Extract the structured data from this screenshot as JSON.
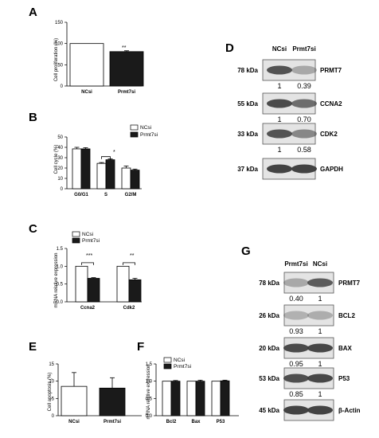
{
  "colors": {
    "white_bar": "#ffffff",
    "black_bar": "#1a1a1a",
    "axis": "#000000",
    "blot_bg": "#e4e4e4",
    "band": "#3a3a3a"
  },
  "panels": {
    "A": {
      "letter": "A",
      "ylabel": "Cell proliferation (%)",
      "sig": "**"
    },
    "B": {
      "letter": "B",
      "ylabel": "Cell cycle (%)",
      "sig": "*",
      "legend": [
        "NCsi",
        "Prmt7si"
      ]
    },
    "C": {
      "letter": "C",
      "ylabel": "mRNA relative expression",
      "sigs": [
        "***",
        "**"
      ],
      "legend": [
        "NCsi",
        "Prmt7si"
      ]
    },
    "D": {
      "letter": "D"
    },
    "E": {
      "letter": "E",
      "ylabel": "Cell apoptosis (%)"
    },
    "F": {
      "letter": "F",
      "ylabel": "mRNA relative expression",
      "legend": [
        "NCsi",
        "Prmt7si"
      ]
    },
    "G": {
      "letter": "G"
    }
  },
  "chart_data": [
    {
      "panel": "A",
      "type": "bar",
      "categories": [
        "NCsi",
        "Prmt7si"
      ],
      "values": [
        100,
        81
      ],
      "errors": [
        0,
        2
      ],
      "ylabel": "Cell proliferation (%)",
      "ylim": [
        0,
        150
      ],
      "yticks": [
        "0",
        "50",
        "100",
        "150"
      ]
    },
    {
      "panel": "B",
      "type": "bar",
      "categories": [
        "G0/G1",
        "S",
        "G2/M"
      ],
      "series": [
        {
          "name": "NCsi",
          "values": [
            38.5,
            24.5,
            20
          ],
          "errors": [
            1.5,
            0.8,
            2
          ]
        },
        {
          "name": "Prmt7si",
          "values": [
            38.5,
            28,
            18
          ],
          "errors": [
            1.2,
            0.8,
            1
          ]
        }
      ],
      "ylabel": "Cell cycle (%)",
      "ylim": [
        0,
        50
      ],
      "yticks": [
        "0",
        "10",
        "20",
        "30",
        "40",
        "50"
      ]
    },
    {
      "panel": "C",
      "type": "bar",
      "categories": [
        "Ccna2",
        "Cdk2"
      ],
      "series": [
        {
          "name": "NCsi",
          "values": [
            1.0,
            1.0
          ],
          "errors": [
            0,
            0
          ]
        },
        {
          "name": "Prmt7si",
          "values": [
            0.66,
            0.62
          ],
          "errors": [
            0.02,
            0.04
          ]
        }
      ],
      "ylabel": "mRNA relative expression",
      "ylim": [
        0,
        1.5
      ],
      "yticks": [
        "0.0",
        "0.5",
        "1.0",
        "1.5"
      ]
    },
    {
      "panel": "E",
      "type": "bar",
      "categories": [
        "NCsi",
        "Prmt7si"
      ],
      "values": [
        8.5,
        8
      ],
      "errors": [
        4,
        3
      ],
      "ylabel": "Cell apoptosis (%)",
      "ylim": [
        0,
        15
      ],
      "yticks": [
        "0",
        "5",
        "10",
        "15"
      ]
    },
    {
      "panel": "F",
      "type": "bar",
      "categories": [
        "Bcl2",
        "Bax",
        "P53"
      ],
      "series": [
        {
          "name": "NCsi",
          "values": [
            1.0,
            1.0,
            1.0
          ],
          "errors": [
            0,
            0,
            0
          ]
        },
        {
          "name": "Prmt7si",
          "values": [
            1.0,
            1.0,
            1.01
          ],
          "errors": [
            0.02,
            0.03,
            0.02
          ]
        }
      ],
      "ylabel": "mRNA relative expression",
      "ylim": [
        0,
        1.5
      ],
      "yticks": [
        "0.0",
        "0.5",
        "1.0",
        "1.5"
      ]
    }
  ],
  "western_blots": {
    "D": {
      "lanes": [
        "NCsi",
        "Prmt7si"
      ],
      "rows": [
        {
          "kda": "78 kDa",
          "protein": "PRMT7",
          "values": [
            "1",
            "0.39"
          ],
          "intensity": [
            0.85,
            0.35
          ]
        },
        {
          "kda": "55 kDa",
          "protein": "CCNA2",
          "values": [
            "1",
            "0.70"
          ],
          "intensity": [
            0.9,
            0.7
          ]
        },
        {
          "kda": "33 kDa",
          "protein": "CDK2",
          "values": [
            "1",
            "0.58"
          ],
          "intensity": [
            0.85,
            0.55
          ]
        },
        {
          "kda": "37 kDa",
          "protein": "GAPDH",
          "values": [],
          "intensity": [
            0.95,
            0.95
          ]
        }
      ]
    },
    "G": {
      "lanes": [
        "Prmt7si",
        "NCsi"
      ],
      "rows": [
        {
          "kda": "78 kDa",
          "protein": "PRMT7",
          "values": [
            "0.40",
            "1"
          ],
          "intensity": [
            0.35,
            0.8
          ]
        },
        {
          "kda": "26 kDa",
          "protein": "BCL2",
          "values": [
            "0.93",
            "1"
          ],
          "intensity": [
            0.3,
            0.32
          ]
        },
        {
          "kda": "20 kDa",
          "protein": "BAX",
          "values": [
            "0.95",
            "1"
          ],
          "intensity": [
            0.9,
            0.92
          ]
        },
        {
          "kda": "53 kDa",
          "protein": "P53",
          "values": [
            "0.85",
            "1"
          ],
          "intensity": [
            0.88,
            0.92
          ]
        },
        {
          "kda": "45 kDa",
          "protein": "β-Actin",
          "values": [],
          "intensity": [
            0.95,
            0.95
          ]
        }
      ]
    }
  }
}
